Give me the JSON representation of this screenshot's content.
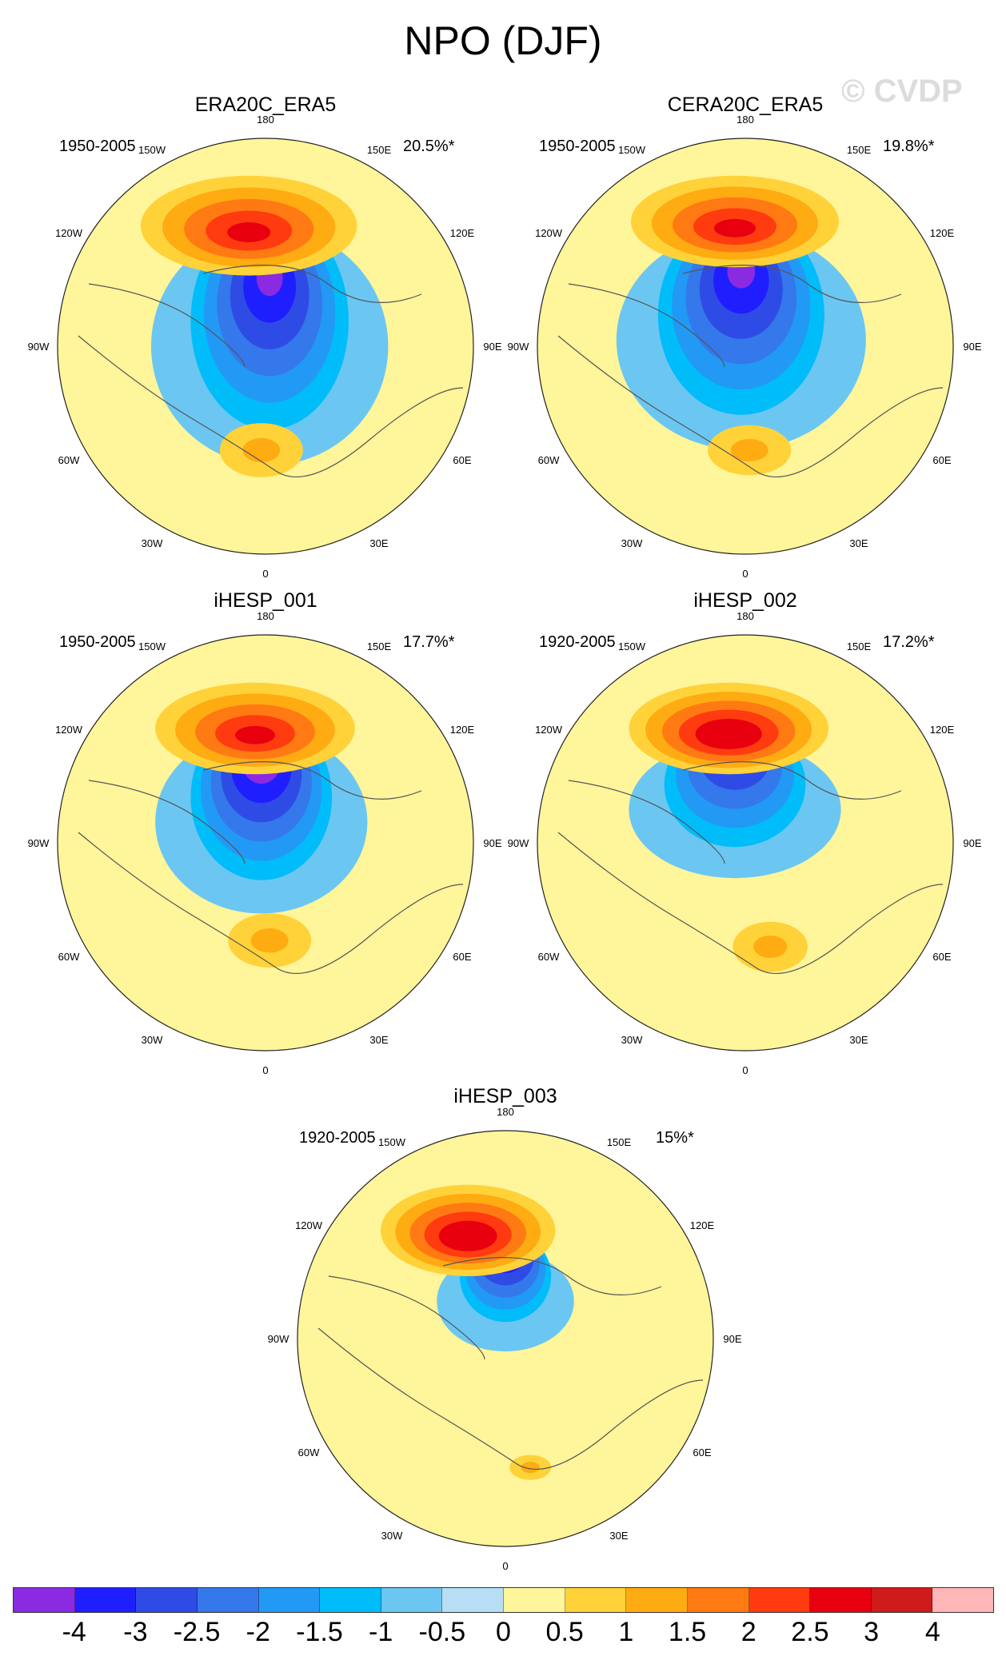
{
  "title": "NPO (DJF)",
  "watermark": "© CVDP",
  "panels": [
    {
      "name": "ERA20C_ERA5",
      "period": "1950-2005",
      "pct": "20.5%*",
      "variant": 0
    },
    {
      "name": "CERA20C_ERA5",
      "period": "1950-2005",
      "pct": "19.8%*",
      "variant": 1
    },
    {
      "name": "iHESP_001",
      "period": "1950-2005",
      "pct": "17.7%*",
      "variant": 2
    },
    {
      "name": "iHESP_002",
      "period": "1920-2005",
      "pct": "17.2%*",
      "variant": 3
    },
    {
      "name": "iHESP_003",
      "period": "1920-2005",
      "pct": "15%*",
      "variant": 4
    }
  ],
  "lon_labels": [
    "180",
    "150E",
    "120E",
    "90E",
    "60E",
    "30E",
    "0",
    "30W",
    "60W",
    "90W",
    "120W",
    "150W"
  ],
  "colorbar": {
    "ticks": [
      "-4",
      "-3",
      "-2.5",
      "-2",
      "-1.5",
      "-1",
      "-0.5",
      "0",
      "0.5",
      "1",
      "1.5",
      "2",
      "2.5",
      "3",
      "4"
    ],
    "colors": [
      "#8a2be2",
      "#1e1eff",
      "#2f4be5",
      "#3478ec",
      "#2299f5",
      "#00bdfa",
      "#6cc6f2",
      "#b7def4",
      "#fff59a",
      "#ffd23a",
      "#ffab12",
      "#ff7a12",
      "#ff3b0f",
      "#e8000f",
      "#cf1b1b",
      "#ffb6b6"
    ]
  }
}
